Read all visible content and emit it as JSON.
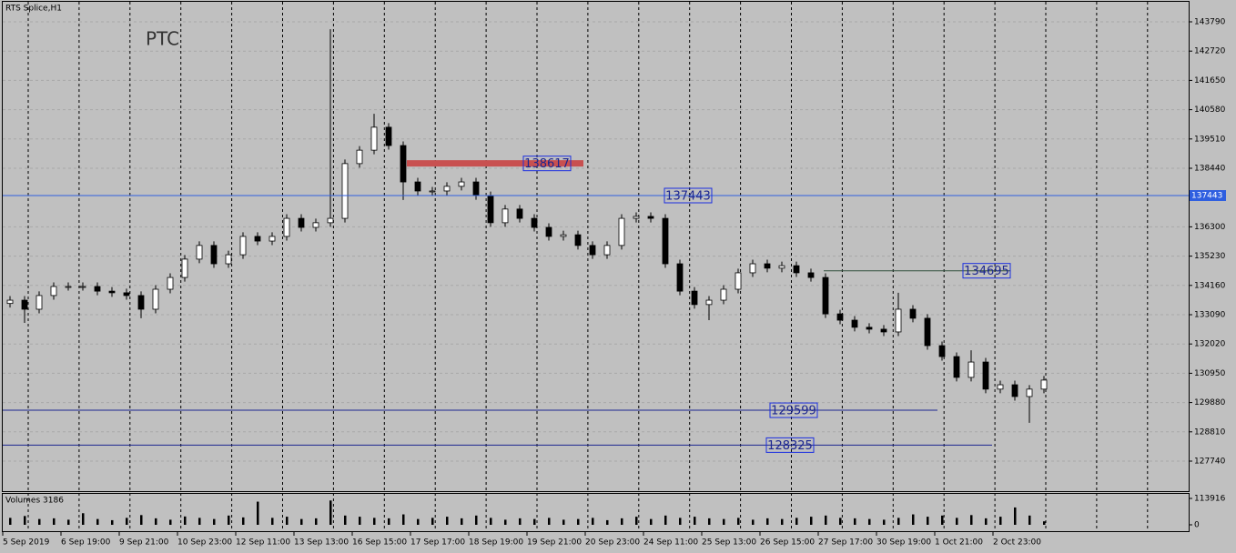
{
  "chart_data": [
    {
      "type": "candlestick",
      "title": "RTS Splice,H1",
      "annotation": "PTC",
      "categories": [
        "5 Sep 2019",
        null,
        null,
        null,
        "6 Sep 19:00",
        null,
        null,
        null,
        "9 Sep 21:00",
        null,
        null,
        null,
        "10 Sep 23:00",
        null,
        null,
        null,
        "12 Sep 11:00",
        null,
        null,
        null,
        "13 Sep 13:00",
        null,
        null,
        null,
        "16 Sep 15:00",
        null,
        null,
        null,
        "17 Sep 17:00",
        null,
        null,
        null,
        "18 Sep 19:00",
        null,
        null,
        null,
        "19 Sep 21:00",
        null,
        null,
        null,
        "20 Sep 23:00",
        null,
        null,
        null,
        "24 Sep 11:00",
        null,
        null,
        null,
        "25 Sep 13:00",
        null,
        null,
        null,
        "26 Sep 15:00",
        null,
        null,
        null,
        "27 Sep 17:00",
        null,
        null,
        null,
        "30 Sep 19:00",
        null,
        null,
        null,
        "1 Oct 21:00",
        null,
        null,
        null,
        "2 Oct 23:00",
        null,
        null,
        null
      ],
      "open": [
        133500,
        133620,
        133290,
        133790,
        134120,
        134120,
        134120,
        133950,
        133890,
        133790,
        133290,
        134020,
        134450,
        135120,
        135620,
        134950,
        135280,
        135950,
        135780,
        135950,
        136610,
        136280,
        136450,
        136610,
        138610,
        139100,
        139940,
        139270,
        137940,
        137610,
        137610,
        137780,
        137940,
        137440,
        136450,
        136950,
        136610,
        136280,
        135950,
        136010,
        135620,
        135280,
        135620,
        136610,
        136680,
        136610,
        134950,
        133950,
        133460,
        133620,
        134020,
        134620,
        134950,
        134790,
        134880,
        134620,
        134450,
        133120,
        132890,
        132630,
        132560,
        132460,
        133290,
        132960,
        131960,
        131560,
        130800,
        131360,
        130370,
        130530,
        130100,
        130370
      ],
      "high": [
        133770,
        133770,
        133940,
        134270,
        134270,
        134270,
        134270,
        134100,
        134040,
        133940,
        134170,
        134600,
        135270,
        135770,
        135770,
        135430,
        136100,
        136100,
        136100,
        136760,
        136760,
        136600,
        143520,
        138760,
        139250,
        140430,
        140090,
        139420,
        138090,
        137760,
        137930,
        138090,
        138090,
        137590,
        137100,
        137100,
        136760,
        136430,
        136160,
        136160,
        135770,
        135770,
        136760,
        136830,
        136830,
        136760,
        135100,
        134100,
        133770,
        134170,
        134770,
        135100,
        135100,
        135030,
        135030,
        134770,
        134600,
        133270,
        133040,
        132780,
        132710,
        133890,
        133440,
        133110,
        132110,
        131710,
        131790,
        131510,
        130680,
        130680,
        130520,
        130850
      ],
      "low": [
        133350,
        132790,
        133140,
        133640,
        133970,
        133970,
        133800,
        133740,
        133640,
        132960,
        133140,
        133870,
        134300,
        134970,
        134800,
        134800,
        135130,
        135630,
        135630,
        135800,
        136130,
        136130,
        136300,
        136460,
        138460,
        138950,
        139120,
        137280,
        137460,
        137460,
        137460,
        137630,
        137290,
        136300,
        136300,
        136460,
        136130,
        135800,
        135800,
        135470,
        135130,
        135130,
        135470,
        136460,
        136460,
        134800,
        133800,
        133310,
        132890,
        133470,
        133870,
        134470,
        134640,
        134640,
        134470,
        134300,
        132970,
        132740,
        132480,
        132410,
        132310,
        132310,
        132810,
        131810,
        131410,
        130650,
        130650,
        130220,
        130220,
        129950,
        129140,
        130220
      ],
      "close": [
        133620,
        133290,
        133790,
        134120,
        134120,
        134120,
        133950,
        133890,
        133790,
        133290,
        134020,
        134450,
        135120,
        135620,
        134950,
        135280,
        135950,
        135780,
        135950,
        136610,
        136280,
        136450,
        136610,
        138610,
        139100,
        139940,
        139270,
        137940,
        137610,
        137610,
        137780,
        137940,
        137440,
        136450,
        136950,
        136610,
        136280,
        135950,
        136010,
        135620,
        135280,
        135620,
        136610,
        136680,
        136610,
        134950,
        133950,
        133460,
        133620,
        134020,
        134620,
        134950,
        134790,
        134880,
        134620,
        134450,
        133120,
        132890,
        132630,
        132560,
        132460,
        133290,
        132960,
        131960,
        131560,
        130800,
        131360,
        130370,
        130530,
        130100,
        130370,
        130700
      ],
      "up_color": "#ffffff",
      "down_color": "#000000",
      "wick_color": "#000000",
      "ylim": [
        126643,
        144521
      ],
      "yticks": [
        143790,
        142720,
        141650,
        140580,
        139510,
        138440,
        136300,
        135230,
        134160,
        133090,
        132020,
        130950,
        129880,
        128810,
        127740
      ],
      "grid": true,
      "levels": [
        138617,
        137443,
        134695,
        129599,
        128325
      ],
      "level_colors": [
        "#c85050",
        "#2f5fe0",
        "#2f4f3a",
        "#1c2690",
        "#1c2690"
      ]
    },
    {
      "type": "bar",
      "title": "Volumes 3186",
      "color": "#000000",
      "values": [
        30000,
        38000,
        25000,
        28000,
        22000,
        50000,
        25000,
        20000,
        30000,
        42000,
        28000,
        22000,
        36000,
        30000,
        25000,
        40000,
        32000,
        100000,
        30000,
        35000,
        25000,
        28000,
        105000,
        40000,
        35000,
        30000,
        28000,
        45000,
        25000,
        30000,
        35000,
        28000,
        40000,
        30000,
        22000,
        28000,
        25000,
        30000,
        22000,
        25000,
        30000,
        20000,
        28000,
        35000,
        25000,
        40000,
        30000,
        35000,
        28000,
        25000,
        30000,
        22000,
        28000,
        25000,
        30000,
        35000,
        40000,
        30000,
        28000,
        25000,
        22000,
        30000,
        45000,
        35000,
        40000,
        30000,
        42000,
        28000,
        35000,
        75000,
        40000,
        15000
      ],
      "ylim": [
        -27500,
        133600
      ],
      "yticks": [
        113916,
        0
      ]
    }
  ]
}
